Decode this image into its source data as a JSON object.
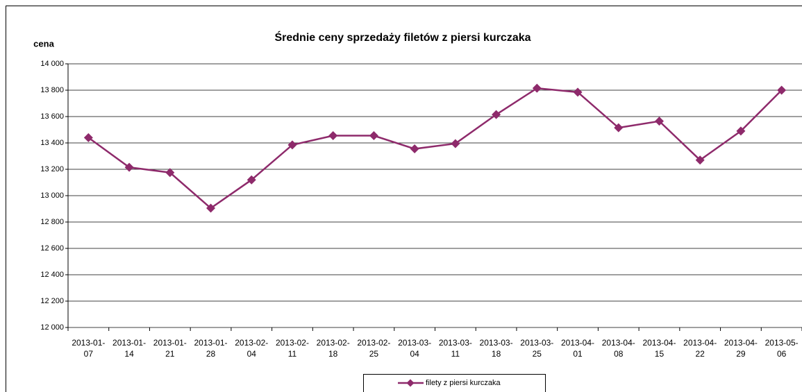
{
  "chart_data": {
    "type": "line",
    "title": "Średnie ceny sprzedaży filetów z piersi kurczaka",
    "y_label": "cena",
    "categories": [
      "2013-01-07",
      "2013-01-14",
      "2013-01-21",
      "2013-01-28",
      "2013-02-04",
      "2013-02-11",
      "2013-02-18",
      "2013-02-25",
      "2013-03-04",
      "2013-03-11",
      "2013-03-18",
      "2013-03-25",
      "2013-04-01",
      "2013-04-08",
      "2013-04-15",
      "2013-04-22",
      "2013-04-29",
      "2013-05-06"
    ],
    "series": [
      {
        "name": "filety z piersi kurczaka",
        "color": "#8e2a6b",
        "values": [
          13440,
          13215,
          13175,
          12905,
          13120,
          13385,
          13455,
          13455,
          13355,
          13395,
          13615,
          13815,
          13785,
          13515,
          13565,
          13270,
          13490,
          13800
        ]
      }
    ],
    "ylim": [
      12000,
      14000
    ],
    "yticks": [
      {
        "value": 12000,
        "label": "12 000"
      },
      {
        "value": 12200,
        "label": "12 200"
      },
      {
        "value": 12400,
        "label": "12 400"
      },
      {
        "value": 12600,
        "label": "12 600"
      },
      {
        "value": 12800,
        "label": "12 800"
      },
      {
        "value": 13000,
        "label": "13 000"
      },
      {
        "value": 13200,
        "label": "13 200"
      },
      {
        "value": 13400,
        "label": "13 400"
      },
      {
        "value": 13600,
        "label": "13 600"
      },
      {
        "value": 13800,
        "label": "13 800"
      },
      {
        "value": 14000,
        "label": "14 000"
      }
    ],
    "grid": true
  }
}
